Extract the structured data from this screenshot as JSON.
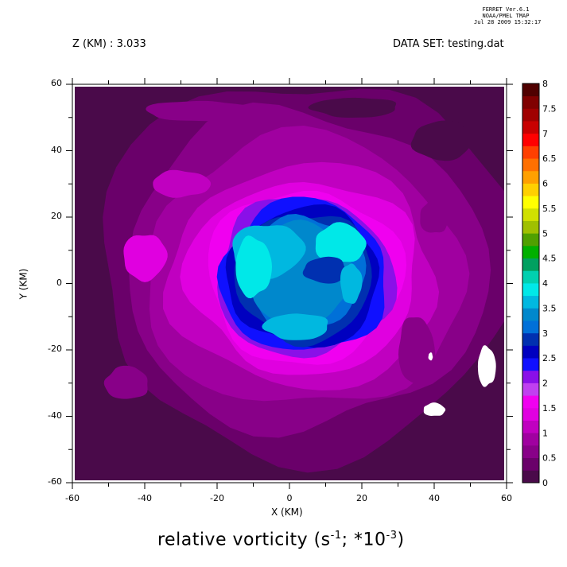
{
  "header": {
    "stamp_line1": "FERRET  Ver.6.1",
    "stamp_line2": "NOAA/PMEL TMAP",
    "stamp_line3": "Jul 28 2009 15:32:17",
    "z_label": "Z (KM) : 3.033",
    "dataset_label": "DATA SET: testing.dat"
  },
  "chart_data": {
    "type": "heatmap",
    "subtype": "filled-contour",
    "xlabel": "X (KM)",
    "ylabel": "Y (KM)",
    "title_main": "relative vorticity (s",
    "title_exp1": "-1",
    "title_mid": "; *10",
    "title_exp2": "-3",
    "title_end": ")",
    "xlim": [
      -60,
      60
    ],
    "ylim": [
      -60,
      60
    ],
    "x_ticks": [
      "-60",
      "-40",
      "-20",
      "0",
      "20",
      "40",
      "60"
    ],
    "y_ticks": [
      "60",
      "40",
      "20",
      "0",
      "-20",
      "-40",
      "-60"
    ],
    "colorbar_range": [
      0,
      8
    ],
    "colorbar_labels": [
      "8",
      "7.5",
      "7",
      "6.5",
      "6",
      "5.5",
      "5",
      "4.5",
      "4",
      "3.5",
      "3",
      "2.5",
      "2",
      "1.5",
      "1",
      "0.5",
      "0"
    ],
    "colorbar_colors": [
      "#4a0a4a",
      "#6a006a",
      "#880088",
      "#a000a0",
      "#c000c0",
      "#e000e0",
      "#f000f0",
      "#c040f0",
      "#8a10e8",
      "#1010ff",
      "#0000c0",
      "#0030b0",
      "#0070d8",
      "#0088cc",
      "#00b8e0",
      "#00e8e8",
      "#00d0b0",
      "#00a060",
      "#00b000",
      "#50a000",
      "#a0c000",
      "#d0e000",
      "#ffff00",
      "#ffd000",
      "#ffa000",
      "#ff7000",
      "#ff4000",
      "#ff0000",
      "#c80000",
      "#a00000",
      "#800000",
      "#500000"
    ],
    "field_levels": [
      {
        "cx": 5,
        "cy": 5,
        "rx": 58,
        "ry": 57,
        "color": "#6a006a"
      },
      {
        "cx": 4,
        "cy": 4,
        "rx": 50,
        "ry": 48,
        "color": "#880088"
      },
      {
        "cx": 4,
        "cy": 3,
        "rx": 44,
        "ry": 41,
        "color": "#a000a0"
      },
      {
        "cx": 4,
        "cy": 2,
        "rx": 37,
        "ry": 34,
        "color": "#c000c0"
      },
      {
        "cx": 4,
        "cy": 2,
        "rx": 32,
        "ry": 29,
        "color": "#e000e0"
      },
      {
        "cx": 4,
        "cy": 2,
        "rx": 27,
        "ry": 26,
        "color": "#f000f0"
      },
      {
        "cx": 4,
        "cy": 2,
        "rx": 24.5,
        "ry": 24,
        "color": "#8a10e8"
      },
      {
        "cx": 4,
        "cy": 2,
        "rx": 23,
        "ry": 23,
        "color": "#1010ff"
      },
      {
        "cx": 4,
        "cy": 2,
        "rx": 21,
        "ry": 21,
        "color": "#0000c0"
      },
      {
        "cx": 4,
        "cy": 2,
        "rx": 19,
        "ry": 19.5,
        "color": "#0030b0"
      },
      {
        "cx": 4,
        "cy": 3,
        "rx": 16.5,
        "ry": 17.5,
        "color": "#0070d8"
      },
      {
        "cx": 3,
        "cy": 3,
        "rx": 14,
        "ry": 15.5,
        "color": "#0088cc"
      }
    ],
    "inner_features": [
      {
        "cx": -6,
        "cy": 10,
        "rx": 10,
        "ry": 8,
        "color": "#00b8e0"
      },
      {
        "cx": -10,
        "cy": 5,
        "rx": 5,
        "ry": 9,
        "color": "#00e8e8"
      },
      {
        "cx": 14,
        "cy": 12,
        "rx": 7,
        "ry": 6,
        "color": "#00e8e8"
      },
      {
        "cx": 10,
        "cy": 4,
        "rx": 6,
        "ry": 4,
        "color": "#0030b0"
      },
      {
        "cx": 2,
        "cy": -13,
        "rx": 9,
        "ry": 4,
        "color": "#00b8e0"
      },
      {
        "cx": 17,
        "cy": 0,
        "rx": 3,
        "ry": 6,
        "color": "#00b8e0"
      }
    ],
    "outer_patches": [
      {
        "cx": -40,
        "cy": 8,
        "rx": 6,
        "ry": 7,
        "color": "#e000e0"
      },
      {
        "cx": -30,
        "cy": 30,
        "rx": 8,
        "ry": 4,
        "color": "#c000c0"
      },
      {
        "cx": 40,
        "cy": 20,
        "rx": 4,
        "ry": 5,
        "color": "#880088"
      },
      {
        "cx": 42,
        "cy": 43,
        "rx": 8,
        "ry": 6,
        "color": "#4a0a4a"
      },
      {
        "cx": 18,
        "cy": 53,
        "rx": 12,
        "ry": 3,
        "color": "#4a0a4a"
      },
      {
        "cx": -25,
        "cy": 52,
        "rx": 15,
        "ry": 3,
        "color": "#880088"
      },
      {
        "cx": 35,
        "cy": -20,
        "rx": 5,
        "ry": 10,
        "color": "#880088"
      },
      {
        "cx": -45,
        "cy": -30,
        "rx": 6,
        "ry": 5,
        "color": "#880088"
      }
    ],
    "white_patches": [
      {
        "cx": 54.5,
        "cy": -25,
        "rx": 2.5,
        "ry": 6
      },
      {
        "cx": 40,
        "cy": -38,
        "rx": 3,
        "ry": 2
      },
      {
        "cx": 39,
        "cy": -22,
        "rx": 0.6,
        "ry": 1.2
      }
    ]
  }
}
